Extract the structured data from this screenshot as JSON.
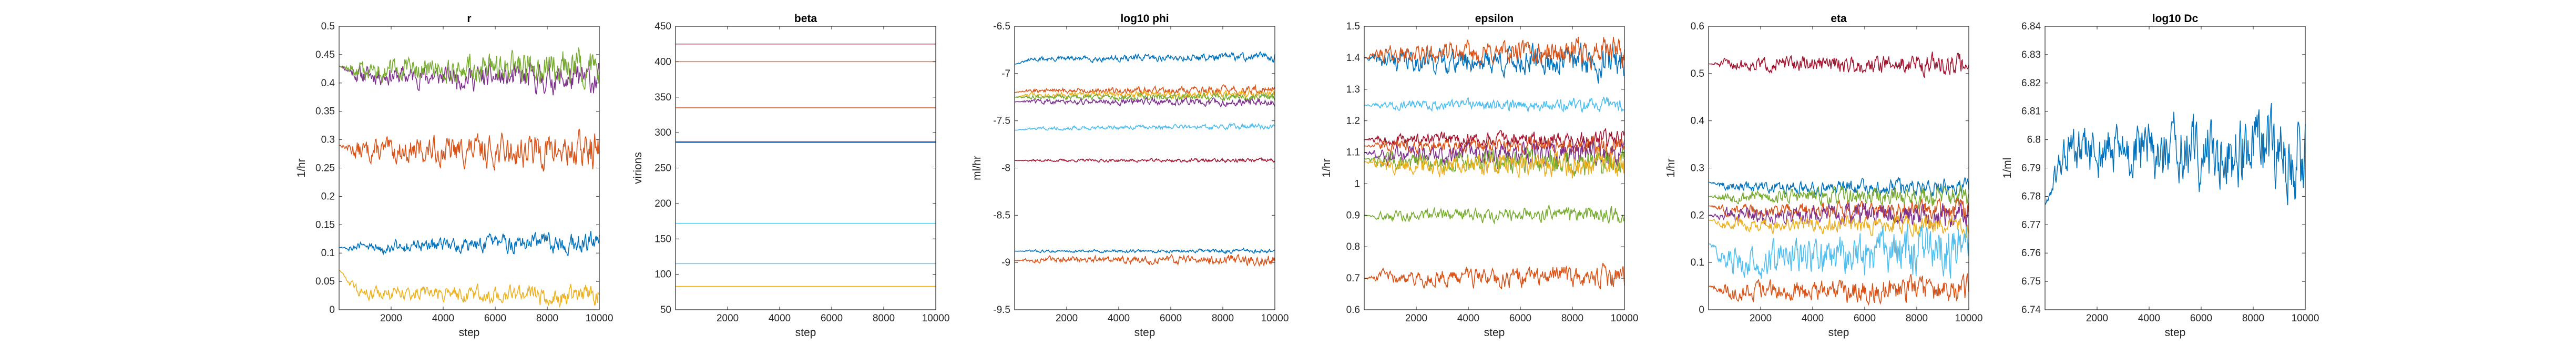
{
  "colors": {
    "blue": "#0072BD",
    "orange": "#D95319",
    "yellow": "#EDB120",
    "purple": "#7E2F8E",
    "green": "#77AC30",
    "cyan": "#4DBEEE",
    "maroon": "#A2142F",
    "axis": "#262626",
    "grid": "#e6e6e6"
  },
  "chart_data": [
    {
      "type": "line",
      "title": "r",
      "xlabel": "step",
      "ylabel": "1/hr",
      "xlim": [
        0,
        10000
      ],
      "ylim": [
        0,
        0.5
      ],
      "xticks": [
        2000,
        4000,
        6000,
        8000,
        10000
      ],
      "xtick_labels": [
        "2000",
        "4000",
        "6000",
        "8000",
        "10000"
      ],
      "yticks": [
        0,
        0.05,
        0.1,
        0.15,
        0.2,
        0.25,
        0.3,
        0.35,
        0.4,
        0.45,
        0.5
      ],
      "ytick_labels": [
        "0",
        "0.05",
        "0.1",
        "0.15",
        "0.2",
        "0.25",
        "0.3",
        "0.35",
        "0.4",
        "0.45",
        "0.5"
      ],
      "series": [
        {
          "color": "purple",
          "start": 0.43,
          "level": 0.415,
          "trend": -0.01,
          "noise": 0.018,
          "seed": 11
        },
        {
          "color": "green",
          "start": 0.43,
          "level": 0.42,
          "trend": 0.01,
          "noise": 0.02,
          "seed": 12
        },
        {
          "color": "orange",
          "start": 0.29,
          "level": 0.28,
          "trend": 0.0,
          "noise": 0.022,
          "seed": 13
        },
        {
          "color": "blue",
          "start": 0.11,
          "level": 0.11,
          "trend": 0.01,
          "noise": 0.012,
          "seed": 14
        },
        {
          "color": "yellow",
          "start": 0.07,
          "level": 0.03,
          "trend": -0.005,
          "noise": 0.012,
          "seed": 15
        }
      ]
    },
    {
      "type": "line",
      "title": "beta",
      "xlabel": "step",
      "ylabel": "virions",
      "xlim": [
        0,
        10000
      ],
      "ylim": [
        50,
        450
      ],
      "xticks": [
        2000,
        4000,
        6000,
        8000,
        10000
      ],
      "xtick_labels": [
        "2000",
        "4000",
        "6000",
        "8000",
        "10000"
      ],
      "yticks": [
        50,
        100,
        150,
        200,
        250,
        300,
        350,
        400,
        450
      ],
      "ytick_labels": [
        "50",
        "100",
        "150",
        "200",
        "250",
        "300",
        "350",
        "400",
        "450"
      ],
      "series": [
        {
          "color": "maroon",
          "start": 425,
          "level": 425,
          "trend": 0,
          "noise": 0,
          "seed": 21
        },
        {
          "color": "orange",
          "start": 400,
          "level": 400,
          "trend": 0,
          "noise": 0,
          "seed": 22
        },
        {
          "color": "orange",
          "start": 335,
          "level": 335,
          "trend": 0,
          "noise": 0,
          "seed": 23
        },
        {
          "color": "purple",
          "start": 287,
          "level": 287,
          "trend": 0,
          "noise": 0,
          "seed": 24
        },
        {
          "color": "blue",
          "start": 286,
          "level": 286,
          "trend": 0,
          "noise": 0,
          "seed": 25
        },
        {
          "color": "cyan",
          "start": 172,
          "level": 172,
          "trend": 0,
          "noise": 0,
          "seed": 26
        },
        {
          "color": "cyan",
          "start": 115,
          "level": 115,
          "trend": 0,
          "noise": 0,
          "seed": 27
        },
        {
          "color": "yellow",
          "start": 83,
          "level": 83,
          "trend": 0,
          "noise": 0,
          "seed": 28
        }
      ]
    },
    {
      "type": "line",
      "title": "log10 phi",
      "xlabel": "step",
      "ylabel": "ml/hr",
      "xlim": [
        0,
        10000
      ],
      "ylim": [
        -9.5,
        -6.5
      ],
      "xticks": [
        2000,
        4000,
        6000,
        8000,
        10000
      ],
      "xtick_labels": [
        "2000",
        "4000",
        "6000",
        "8000",
        "10000"
      ],
      "yticks": [
        -9.5,
        -9,
        -8.5,
        -8,
        -7.5,
        -7,
        -6.5
      ],
      "ytick_labels": [
        "-9.5",
        "-9",
        "-8.5",
        "-8",
        "-7.5",
        "-7",
        "-6.5"
      ],
      "series": [
        {
          "color": "blue",
          "start": -6.9,
          "level": -6.85,
          "trend": 0.03,
          "noise": 0.03,
          "seed": 31
        },
        {
          "color": "orange",
          "start": -7.2,
          "level": -7.18,
          "trend": 0.0,
          "noise": 0.03,
          "seed": 32
        },
        {
          "color": "yellow",
          "start": -7.25,
          "level": -7.22,
          "trend": 0.0,
          "noise": 0.03,
          "seed": 33
        },
        {
          "color": "green",
          "start": -7.25,
          "level": -7.25,
          "trend": 0.0,
          "noise": 0.03,
          "seed": 34
        },
        {
          "color": "purple",
          "start": -7.3,
          "level": -7.3,
          "trend": 0.0,
          "noise": 0.03,
          "seed": 35
        },
        {
          "color": "cyan",
          "start": -7.6,
          "level": -7.58,
          "trend": 0.02,
          "noise": 0.02,
          "seed": 36
        },
        {
          "color": "maroon",
          "start": -7.92,
          "level": -7.92,
          "trend": 0.0,
          "noise": 0.015,
          "seed": 37
        },
        {
          "color": "blue",
          "start": -8.88,
          "level": -8.88,
          "trend": 0.0,
          "noise": 0.015,
          "seed": 38
        },
        {
          "color": "orange",
          "start": -8.98,
          "level": -8.97,
          "trend": 0.0,
          "noise": 0.035,
          "seed": 39
        }
      ]
    },
    {
      "type": "line",
      "title": "epsilon",
      "xlabel": "step",
      "ylabel": "1/hr",
      "xlim": [
        0,
        10000
      ],
      "ylim": [
        0.6,
        1.5
      ],
      "xticks": [
        2000,
        4000,
        6000,
        8000,
        10000
      ],
      "xtick_labels": [
        "2000",
        "4000",
        "6000",
        "8000",
        "10000"
      ],
      "yticks": [
        0.6,
        0.7,
        0.8,
        0.9,
        1,
        1.1,
        1.2,
        1.3,
        1.4,
        1.5
      ],
      "ytick_labels": [
        "0.6",
        "0.7",
        "0.8",
        "0.9",
        "1",
        "1.1",
        "1.2",
        "1.3",
        "1.4",
        "1.5"
      ],
      "series": [
        {
          "color": "blue",
          "start": 1.4,
          "level": 1.39,
          "trend": 0.0,
          "noise": 0.035,
          "seed": 41
        },
        {
          "color": "orange",
          "start": 1.4,
          "level": 1.41,
          "trend": 0.01,
          "noise": 0.03,
          "seed": 42
        },
        {
          "color": "cyan",
          "start": 1.25,
          "level": 1.25,
          "trend": 0.0,
          "noise": 0.015,
          "seed": 43
        },
        {
          "color": "maroon",
          "start": 1.14,
          "level": 1.14,
          "trend": 0.0,
          "noise": 0.02,
          "seed": 44
        },
        {
          "color": "orange",
          "start": 1.12,
          "level": 1.12,
          "trend": 0.0,
          "noise": 0.02,
          "seed": 45
        },
        {
          "color": "purple",
          "start": 1.1,
          "level": 1.09,
          "trend": 0.0,
          "noise": 0.03,
          "seed": 46
        },
        {
          "color": "green",
          "start": 1.08,
          "level": 1.07,
          "trend": 0.0,
          "noise": 0.03,
          "seed": 47
        },
        {
          "color": "yellow",
          "start": 1.07,
          "level": 1.06,
          "trend": 0.0,
          "noise": 0.03,
          "seed": 48
        },
        {
          "color": "green",
          "start": 0.9,
          "level": 0.9,
          "trend": 0.0,
          "noise": 0.018,
          "seed": 49
        },
        {
          "color": "orange",
          "start": 0.7,
          "level": 0.7,
          "trend": 0.0,
          "noise": 0.025,
          "seed": 50
        }
      ]
    },
    {
      "type": "line",
      "title": "eta",
      "xlabel": "step",
      "ylabel": "1/hr",
      "xlim": [
        0,
        10000
      ],
      "ylim": [
        0,
        0.6
      ],
      "xticks": [
        2000,
        4000,
        6000,
        8000,
        10000
      ],
      "xtick_labels": [
        "2000",
        "4000",
        "6000",
        "8000",
        "10000"
      ],
      "yticks": [
        0,
        0.1,
        0.2,
        0.3,
        0.4,
        0.5,
        0.6
      ],
      "ytick_labels": [
        "0",
        "0.1",
        "0.2",
        "0.3",
        "0.4",
        "0.5",
        "0.6"
      ],
      "series": [
        {
          "color": "maroon",
          "start": 0.52,
          "level": 0.52,
          "trend": 0.0,
          "noise": 0.015,
          "seed": 51
        },
        {
          "color": "blue",
          "start": 0.27,
          "level": 0.26,
          "trend": 0.0,
          "noise": 0.012,
          "seed": 52
        },
        {
          "color": "green",
          "start": 0.24,
          "level": 0.24,
          "trend": 0.0,
          "noise": 0.015,
          "seed": 53
        },
        {
          "color": "orange",
          "start": 0.22,
          "level": 0.21,
          "trend": 0.0,
          "noise": 0.015,
          "seed": 54
        },
        {
          "color": "purple",
          "start": 0.2,
          "level": 0.2,
          "trend": 0.0,
          "noise": 0.018,
          "seed": 55
        },
        {
          "color": "yellow",
          "start": 0.19,
          "level": 0.18,
          "trend": 0.0,
          "noise": 0.015,
          "seed": 56
        },
        {
          "color": "cyan",
          "start": 0.14,
          "level": 0.1,
          "trend": 0.03,
          "noise": 0.035,
          "seed": 57
        },
        {
          "color": "orange",
          "start": 0.05,
          "level": 0.04,
          "trend": 0.0,
          "noise": 0.02,
          "seed": 58
        }
      ]
    },
    {
      "type": "line",
      "title": "log10 Dc",
      "xlabel": "step",
      "ylabel": "1/ml",
      "xlim": [
        0,
        10000
      ],
      "ylim": [
        6.74,
        6.84
      ],
      "xticks": [
        2000,
        4000,
        6000,
        8000,
        10000
      ],
      "xtick_labels": [
        "2000",
        "4000",
        "6000",
        "8000",
        "10000"
      ],
      "yticks": [
        6.74,
        6.75,
        6.76,
        6.77,
        6.78,
        6.79,
        6.8,
        6.81,
        6.82,
        6.83,
        6.84
      ],
      "ytick_labels": [
        "6.74",
        "6.75",
        "6.76",
        "6.77",
        "6.78",
        "6.79",
        "6.8",
        "6.81",
        "6.82",
        "6.83",
        "6.84"
      ],
      "series": [
        {
          "color": "blue",
          "start": 6.777,
          "level": 6.795,
          "trend": 0.0,
          "noise": 0.01,
          "seed": 61
        }
      ]
    }
  ]
}
